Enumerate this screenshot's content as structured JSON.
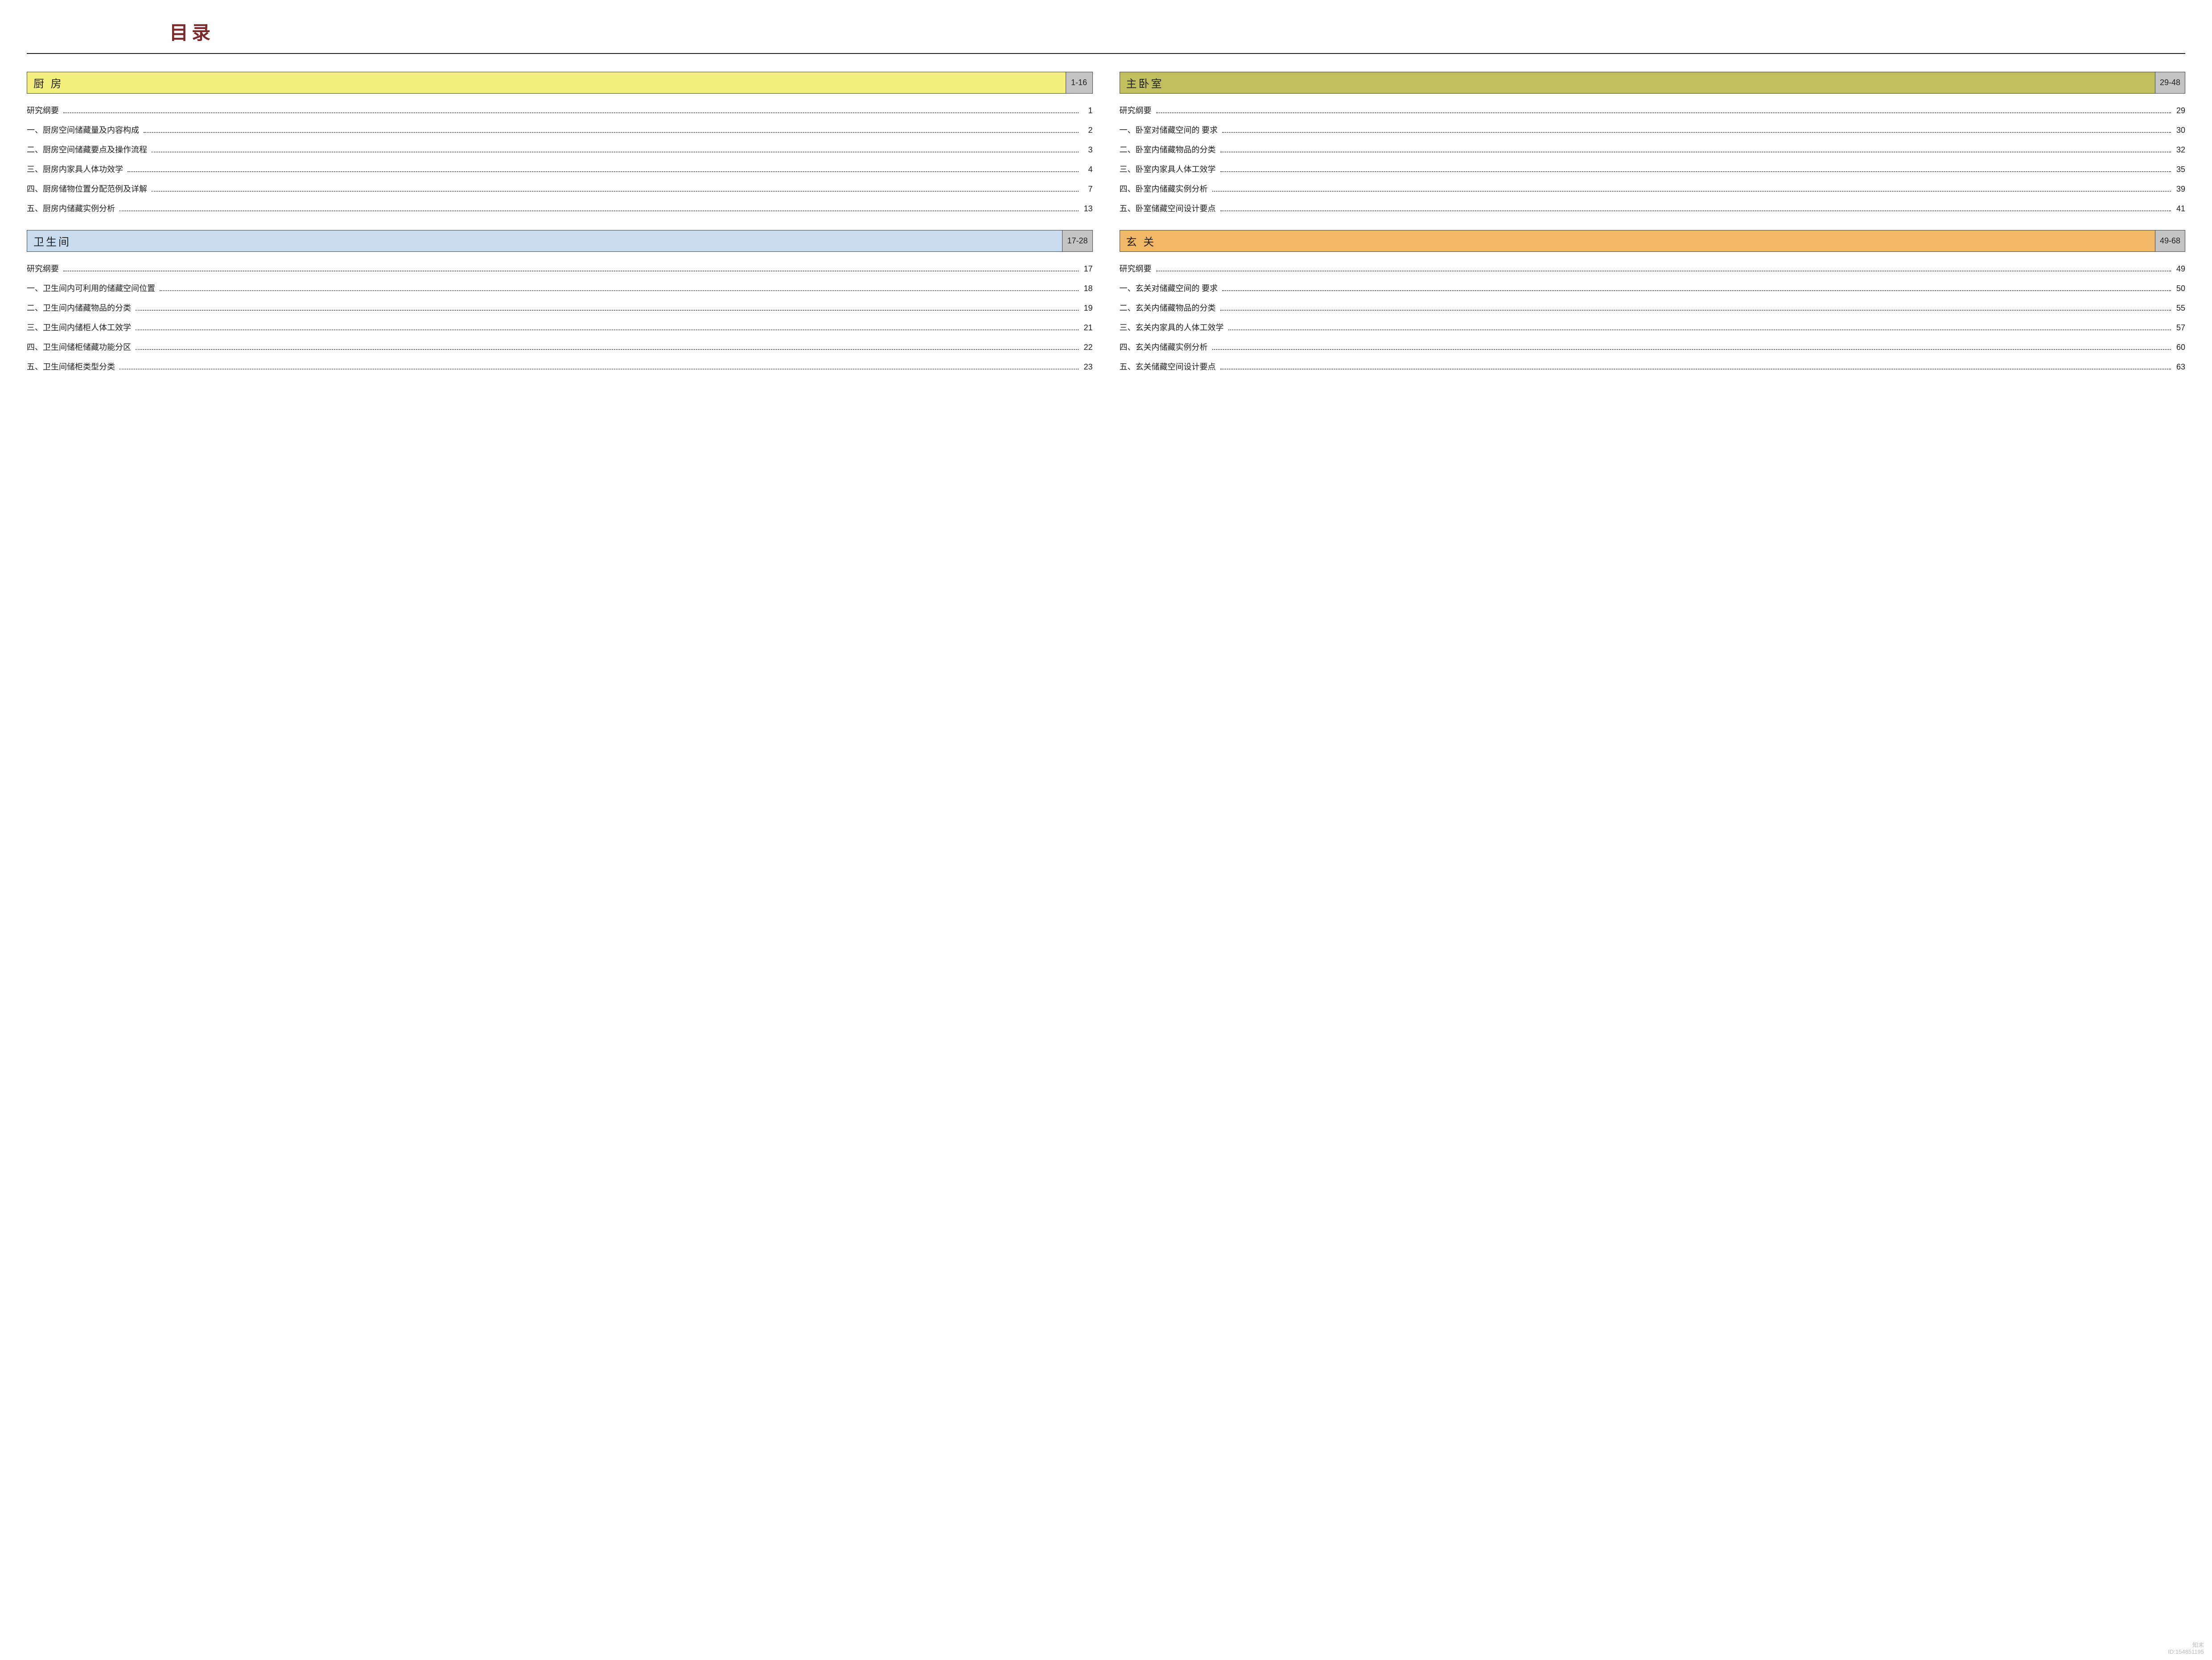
{
  "title": "目录",
  "watermark": {
    "line1": "知末",
    "line2": "ID:154851195"
  },
  "colors": {
    "title_color": "#7a2a2a",
    "rule_color": "#222222",
    "range_bg": "#c4c4c4",
    "text_color": "#222222",
    "dot_color": "#555555"
  },
  "sections": [
    {
      "title": "厨 房",
      "range": "1-16",
      "bg": "#f4ee7c",
      "items": [
        {
          "label": "研究纲要",
          "page": "1"
        },
        {
          "label": "一、厨房空间储藏量及内容构成",
          "page": "2"
        },
        {
          "label": "二、厨房空间储藏要点及操作流程",
          "page": "3"
        },
        {
          "label": "三、厨房内家具人体功效学",
          "page": "4"
        },
        {
          "label": "四、厨房储物位置分配范例及详解",
          "page": "7"
        },
        {
          "label": "五、厨房内储藏实例分析",
          "page": "13"
        }
      ]
    },
    {
      "title": "卫生间",
      "range": "17-28",
      "bg": "#c7dcef",
      "items": [
        {
          "label": "研究纲要",
          "page": "17"
        },
        {
          "label": "一、卫生间内可利用的储藏空间位置",
          "page": "18"
        },
        {
          "label": "二、卫生间内储藏物品的分类",
          "page": "19"
        },
        {
          "label": "三、卫生间内储柜人体工效学",
          "page": "21"
        },
        {
          "label": "四、卫生间储柜储藏功能分区",
          "page": "22"
        },
        {
          "label": "五、卫生间储柜类型分类",
          "page": "23"
        }
      ]
    },
    {
      "title": "主卧室",
      "range": "29-48",
      "bg": "#bfbf5f",
      "items": [
        {
          "label": "研究纲要",
          "page": "29"
        },
        {
          "label": "一、卧室对储藏空间的 要求",
          "page": "30"
        },
        {
          "label": "二、卧室内储藏物品的分类",
          "page": "32"
        },
        {
          "label": "三、卧室内家具人体工效学",
          "page": "35"
        },
        {
          "label": "四、卧室内储藏实例分析",
          "page": "39"
        },
        {
          "label": "五、卧室储藏空间设计要点",
          "page": "41"
        }
      ]
    },
    {
      "title": "玄 关",
      "range": "49-68",
      "bg": "#f1b867",
      "items": [
        {
          "label": "研究纲要",
          "page": "49"
        },
        {
          "label": "一、玄关对储藏空间的 要求",
          "page": "50"
        },
        {
          "label": "二、玄关内储藏物品的分类",
          "page": "55"
        },
        {
          "label": "三、玄关内家具的人体工效学",
          "page": "57"
        },
        {
          "label": "四、玄关内储藏实例分析",
          "page": "60"
        },
        {
          "label": "五、玄关储藏空间设计要点",
          "page": "63"
        }
      ]
    }
  ]
}
